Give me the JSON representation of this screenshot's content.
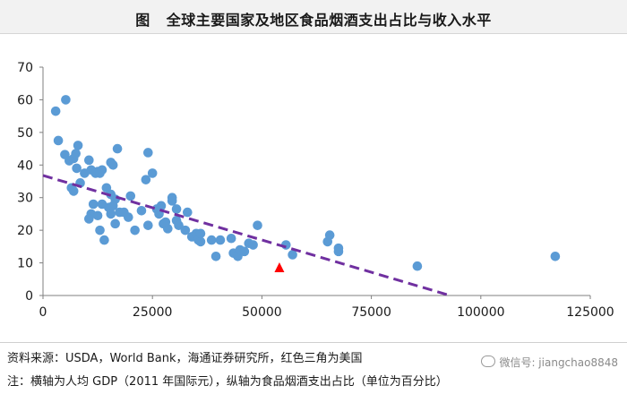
{
  "title": {
    "figure_label": "图",
    "text": "全球主要国家及地区食品烟酒支出占比与收入水平"
  },
  "notes": {
    "source": "资料来源：USDA，World Bank，海通证券研究所，红色三角为美国",
    "note": "注：横轴为人均 GDP（2011 年国际元），纵轴为食品烟酒支出占比（单位为百分比）"
  },
  "watermark": "微信号: jiangchao8848",
  "colors": {
    "points": "#5b9bd5",
    "highlight": "#ff0000",
    "trend": "#7030a0",
    "axis": "#7f7f7f"
  },
  "chart_data": {
    "type": "scatter",
    "title": "全球主要国家及地区食品烟酒支出占比与收入水平",
    "xlabel": "",
    "ylabel": "",
    "xlim": [
      0,
      125000
    ],
    "ylim": [
      0,
      70
    ],
    "xticks": [
      0,
      25000,
      50000,
      75000,
      100000,
      125000
    ],
    "yticks": [
      0,
      10,
      20,
      30,
      40,
      50,
      60,
      70
    ],
    "grid": false,
    "series": [
      {
        "name": "countries",
        "marker": "circle",
        "points": [
          [
            2900,
            56.5
          ],
          [
            3500,
            47.5
          ],
          [
            5200,
            60
          ],
          [
            5000,
            43.2
          ],
          [
            6000,
            41.3
          ],
          [
            7000,
            42
          ],
          [
            7500,
            43.5
          ],
          [
            7700,
            39
          ],
          [
            8000,
            46
          ],
          [
            8500,
            34.5
          ],
          [
            6500,
            33
          ],
          [
            7000,
            32
          ],
          [
            9500,
            37.5
          ],
          [
            10500,
            41.5
          ],
          [
            11000,
            38.5
          ],
          [
            12000,
            37.5
          ],
          [
            12500,
            38
          ],
          [
            13000,
            37.5
          ],
          [
            13500,
            38.5
          ],
          [
            14500,
            33
          ],
          [
            11500,
            28
          ],
          [
            13500,
            28
          ],
          [
            11000,
            25
          ],
          [
            10500,
            23.5
          ],
          [
            12500,
            24.5
          ],
          [
            13000,
            20
          ],
          [
            14000,
            17
          ],
          [
            15500,
            40.8
          ],
          [
            16000,
            40
          ],
          [
            17000,
            45
          ],
          [
            15500,
            31
          ],
          [
            16500,
            29.5
          ],
          [
            15000,
            27
          ],
          [
            16000,
            27.5
          ],
          [
            15500,
            25
          ],
          [
            17500,
            25.5
          ],
          [
            18500,
            25.5
          ],
          [
            19500,
            24
          ],
          [
            16500,
            22
          ],
          [
            20000,
            30.5
          ],
          [
            21000,
            20
          ],
          [
            22500,
            26
          ],
          [
            23500,
            35.5
          ],
          [
            24000,
            43.8
          ],
          [
            25000,
            37.5
          ],
          [
            24000,
            21.5
          ],
          [
            26000,
            26.5
          ],
          [
            27000,
            27.5
          ],
          [
            26500,
            25
          ],
          [
            27500,
            22
          ],
          [
            28500,
            20.5
          ],
          [
            28000,
            22.5
          ],
          [
            29500,
            29
          ],
          [
            29500,
            30
          ],
          [
            30500,
            26.5
          ],
          [
            30500,
            23
          ],
          [
            31000,
            21.5
          ],
          [
            32500,
            20
          ],
          [
            33000,
            25.5
          ],
          [
            34000,
            18
          ],
          [
            35000,
            19
          ],
          [
            35500,
            17
          ],
          [
            36000,
            16.5
          ],
          [
            36000,
            19
          ],
          [
            38500,
            17
          ],
          [
            39500,
            12
          ],
          [
            40500,
            17
          ],
          [
            43000,
            17.5
          ],
          [
            43500,
            13
          ],
          [
            44500,
            12
          ],
          [
            45000,
            14
          ],
          [
            46000,
            13.5
          ],
          [
            47000,
            16
          ],
          [
            48000,
            15.5
          ],
          [
            49000,
            21.5
          ],
          [
            55500,
            15.5
          ],
          [
            57000,
            12.5
          ],
          [
            65000,
            16.5
          ],
          [
            65500,
            18.5
          ],
          [
            67500,
            13.5
          ],
          [
            67500,
            14.5
          ],
          [
            85500,
            9
          ],
          [
            117000,
            12
          ]
        ]
      },
      {
        "name": "美国",
        "marker": "triangle",
        "points": [
          [
            54000,
            8.5
          ]
        ]
      }
    ],
    "trendline": {
      "style": "dashed",
      "from": [
        0,
        36.8
      ],
      "to": [
        93000,
        0
      ]
    }
  }
}
